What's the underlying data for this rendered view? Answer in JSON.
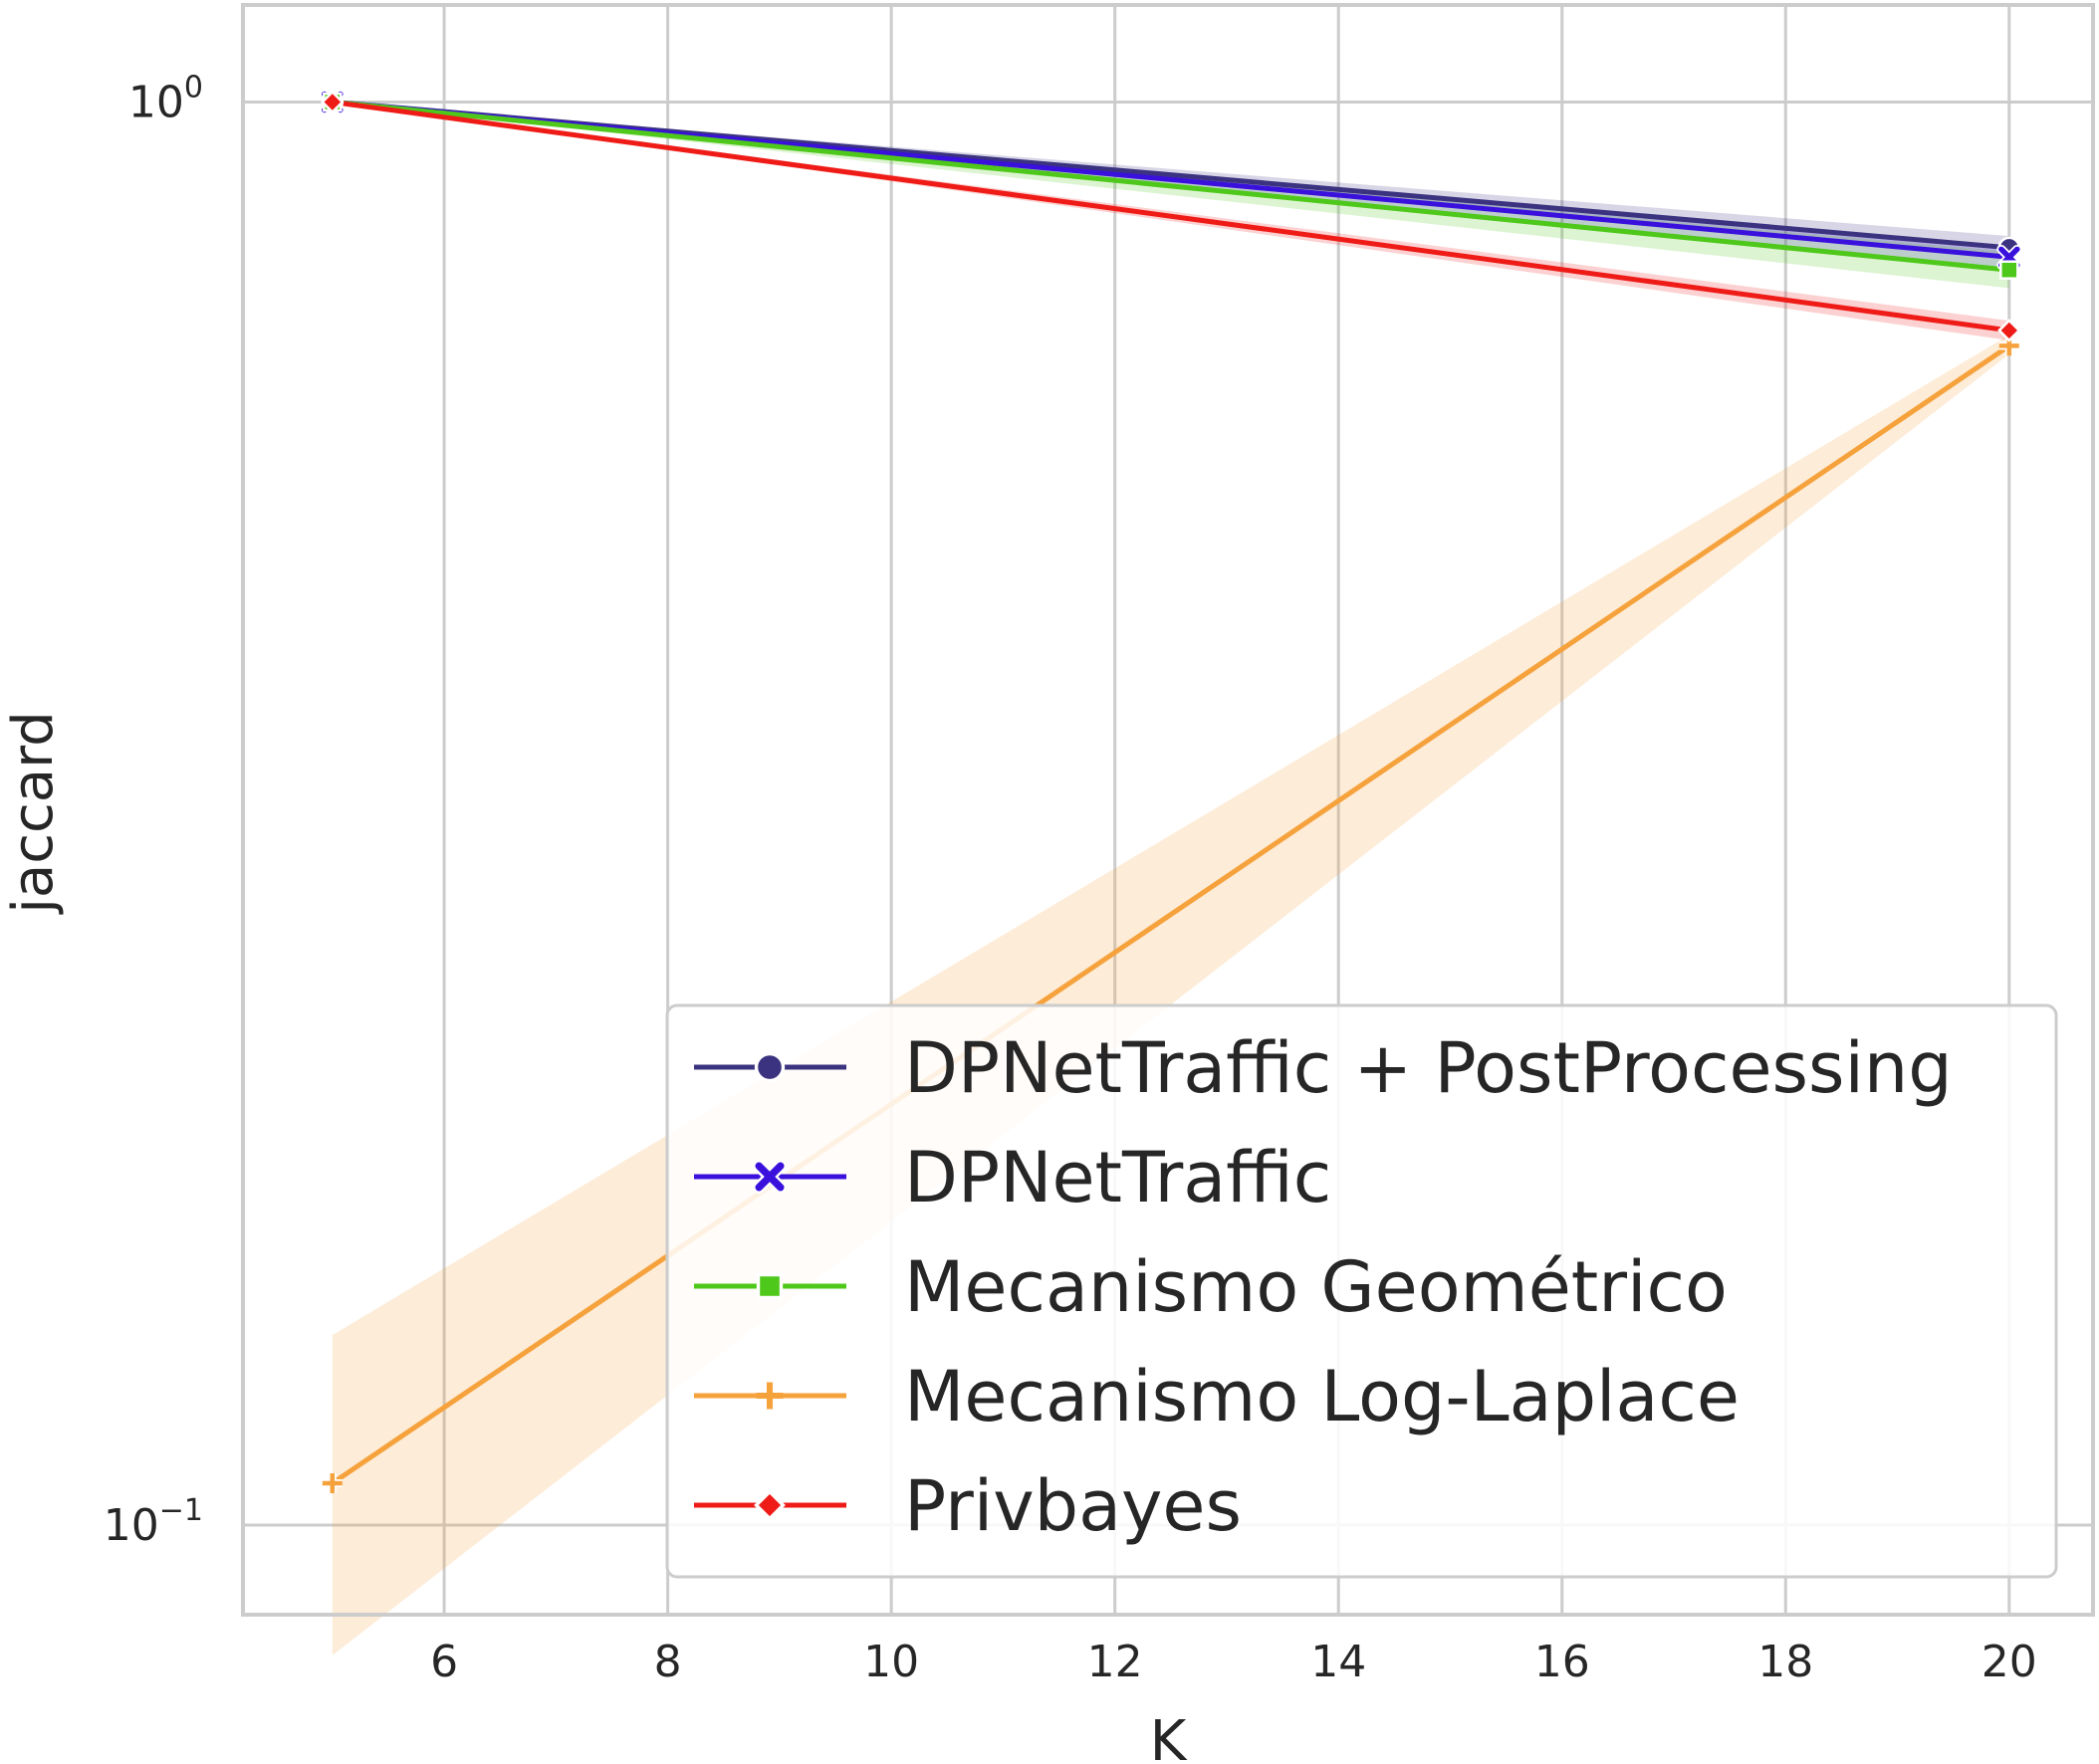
{
  "chart_data": {
    "type": "line",
    "title": "",
    "xlabel": "K",
    "ylabel": "jaccard",
    "xscale": "linear",
    "yscale": "log",
    "xlim": [
      4.2,
      20.75
    ],
    "ylim": [
      0.0865,
      1.17
    ],
    "grid": true,
    "legend_position": "lower-right",
    "x_ticks": [
      {
        "value": 6,
        "label": "6"
      },
      {
        "value": 8,
        "label": "8"
      },
      {
        "value": 10,
        "label": "10"
      },
      {
        "value": 12,
        "label": "12"
      },
      {
        "value": 14,
        "label": "14"
      },
      {
        "value": 16,
        "label": "16"
      },
      {
        "value": 18,
        "label": "18"
      },
      {
        "value": 20,
        "label": "20"
      }
    ],
    "y_ticks": [
      {
        "value": 1.0,
        "base": "10",
        "exponent": "0"
      },
      {
        "value": 0.1,
        "base": "10",
        "exponent": "−1"
      }
    ],
    "x": [
      5,
      20
    ],
    "series": [
      {
        "name": "DPNetTraffic + PostProcessing",
        "color": "#3b3380",
        "marker": "circle",
        "values": [
          1.0,
          0.79
        ],
        "ci_low": [
          1.0,
          0.775
        ],
        "ci_high": [
          1.0,
          0.805
        ]
      },
      {
        "name": "DPNetTraffic",
        "color": "#3a10dd",
        "marker": "x",
        "values": [
          1.0,
          0.778
        ],
        "ci_low": [
          1.0,
          0.765
        ],
        "ci_high": [
          1.0,
          0.792
        ]
      },
      {
        "name": "Mecanismo Geométrico",
        "color": "#4ec81a",
        "marker": "square",
        "values": [
          1.0,
          0.762
        ],
        "ci_low": [
          1.0,
          0.74
        ],
        "ci_high": [
          1.0,
          0.785
        ]
      },
      {
        "name": "Mecanismo Log-Laplace",
        "color": "#f6a23c",
        "marker": "plus",
        "values": [
          0.107,
          0.674
        ],
        "ci_low": [
          0.081,
          0.665
        ],
        "ci_high": [
          0.136,
          0.686
        ]
      },
      {
        "name": "Privbayes",
        "color": "#ee1b17",
        "marker": "diamond",
        "values": [
          1.0,
          0.691
        ],
        "ci_low": [
          1.0,
          0.68
        ],
        "ci_high": [
          1.0,
          0.702
        ]
      }
    ]
  }
}
